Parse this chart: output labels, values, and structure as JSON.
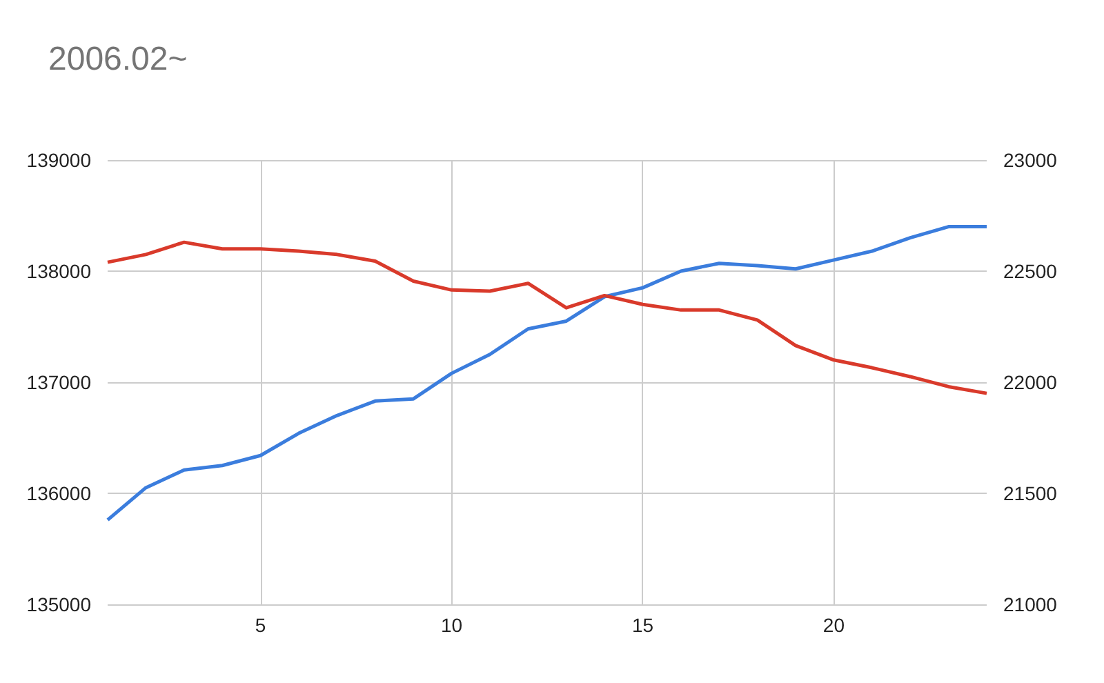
{
  "chart_data": {
    "type": "line",
    "title": "2006.02~",
    "x": [
      1,
      2,
      3,
      4,
      5,
      6,
      7,
      8,
      9,
      10,
      11,
      12,
      13,
      14,
      15,
      16,
      17,
      18,
      19,
      20,
      21,
      22,
      23,
      24
    ],
    "series": [
      {
        "color": "#3b7ddd",
        "values": [
          135760,
          136050,
          136210,
          136250,
          136340,
          136540,
          136700,
          136830,
          136850,
          137080,
          137250,
          137480,
          137550,
          137770,
          137850,
          138000,
          138070,
          138050,
          138020,
          138100,
          138180,
          138300,
          138400,
          138400
        ]
      },
      {
        "color": "#d93a2b",
        "axis": "y2",
        "values": [
          22540,
          22575,
          22630,
          22600,
          22600,
          22590,
          22575,
          22545,
          22455,
          22415,
          22410,
          22445,
          22335,
          22390,
          22350,
          22325,
          22325,
          22280,
          22165,
          22100,
          22065,
          22025,
          21980,
          21950
        ]
      }
    ],
    "xlim": [
      1,
      24
    ],
    "xticks": [
      5,
      10,
      15,
      20
    ],
    "ylim": [
      135000,
      139000
    ],
    "yticks": [
      135000,
      136000,
      137000,
      138000,
      139000
    ],
    "y2lim": [
      21000,
      23000
    ],
    "y2ticks": [
      21000,
      21500,
      22000,
      22500,
      23000
    ],
    "grid": true,
    "marker": "none",
    "line_style": "solid"
  }
}
